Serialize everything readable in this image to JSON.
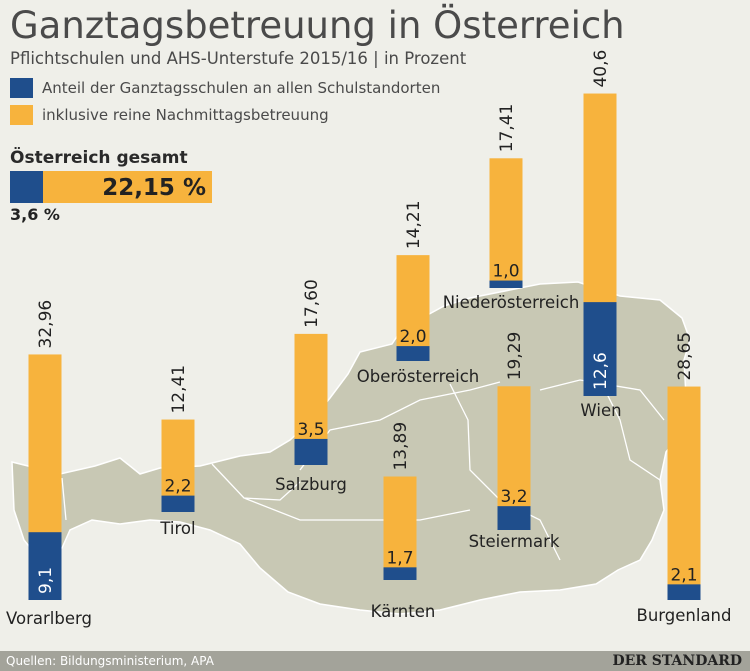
{
  "title": "Ganztagsbetreuung in Österreich",
  "subtitle": "Pflichtschulen und AHS-Unterstufe 2015/16 | in Prozent",
  "legend": {
    "share_label": "Anteil der Ganztagsschulen an allen Schulstandorten",
    "afternoon_label": "inklusive reine Nachmittagsbetreuung"
  },
  "colors": {
    "share": "#1f4e8c",
    "afternoon": "#f7b33d",
    "map_fill": "#c8c8b4",
    "background": "#efefe9",
    "footer_bar": "#a3a39a"
  },
  "total": {
    "label": "Österreich gesamt",
    "afternoon_text": "22,15 %",
    "share_text": "3,6 %",
    "afternoon_value": 22.15,
    "share_value": 3.6
  },
  "footer": {
    "source": "Quellen: Bildungsministerium, APA",
    "brand": "DER STANDARD"
  },
  "chart_data": {
    "type": "bar",
    "categories": [
      "Vorarlberg",
      "Tirol",
      "Salzburg",
      "Oberösterreich",
      "Niederösterreich",
      "Kärnten",
      "Steiermark",
      "Wien",
      "Burgenland"
    ],
    "series": [
      {
        "name": "Anteil der Ganztagsschulen an allen Schulstandorten",
        "values": [
          9.1,
          2.2,
          3.5,
          2.0,
          1.0,
          1.7,
          3.2,
          12.6,
          2.1
        ]
      },
      {
        "name": "inklusive reine Nachmittagsbetreuung",
        "values": [
          32.96,
          12.41,
          17.6,
          14.21,
          17.41,
          13.89,
          19.29,
          40.6,
          28.65
        ]
      }
    ],
    "labels": {
      "share": [
        "9,1",
        "2,2",
        "3,5",
        "2,0",
        "1,0",
        "1,7",
        "3,2",
        "12,6",
        "2,1"
      ],
      "total": [
        "32,96",
        "12,41",
        "17,60",
        "14,21",
        "17,41",
        "13,89",
        "19,29",
        "40,6",
        "28,65"
      ]
    },
    "stacked": false,
    "overlapping": true
  }
}
